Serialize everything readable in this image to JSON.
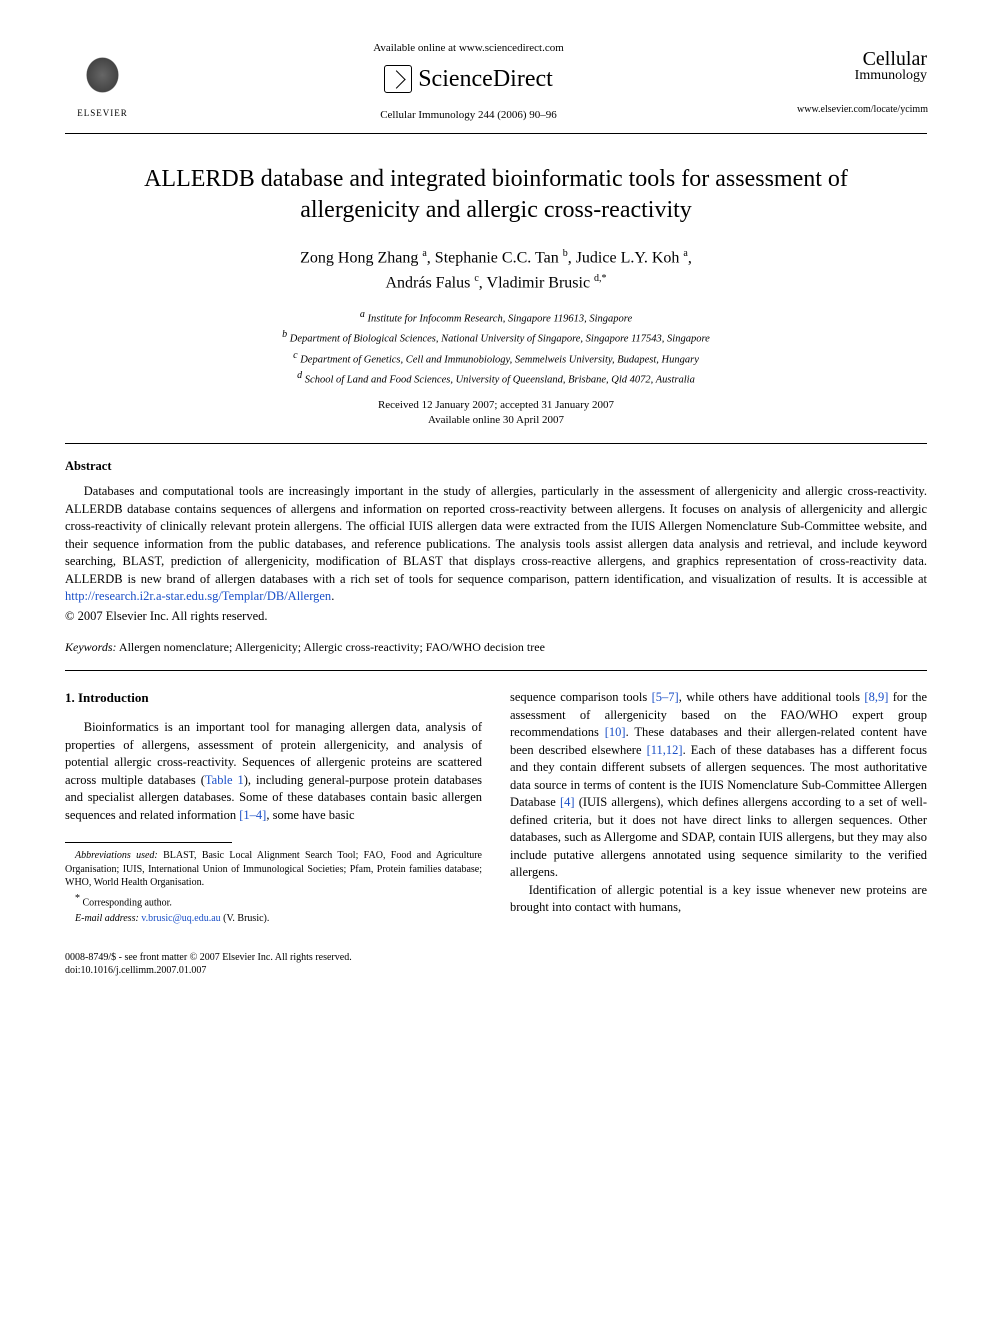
{
  "header": {
    "available_text": "Available online at www.sciencedirect.com",
    "brand": "ScienceDirect",
    "publisher": "ELSEVIER",
    "journal_ref": "Cellular Immunology 244 (2006) 90–96",
    "journal_name_top": "Cellular",
    "journal_name_bottom": "Immunology",
    "journal_url": "www.elsevier.com/locate/ycimm"
  },
  "title": "ALLERDB database and integrated bioinformatic tools for assessment of allergenicity and allergic cross-reactivity",
  "authors_html": "Zong Hong Zhang <span class='sup'>a</span>, Stephanie C.C. Tan <span class='sup'>b</span>, Judice L.Y. Koh <span class='sup'>a</span>,<br>András Falus <span class='sup'>c</span>, Vladimir Brusic <span class='sup'>d,*</span>",
  "affiliations": {
    "a": "Institute for Infocomm Research, Singapore 119613, Singapore",
    "b": "Department of Biological Sciences, National University of Singapore, Singapore 117543, Singapore",
    "c": "Department of Genetics, Cell and Immunobiology, Semmelweis University, Budapest, Hungary",
    "d": "School of Land and Food Sciences, University of Queensland, Brisbane, Qld 4072, Australia"
  },
  "dates": {
    "received": "Received 12 January 2007; accepted 31 January 2007",
    "online": "Available online 30 April 2007"
  },
  "abstract": {
    "heading": "Abstract",
    "body_pre": "Databases and computational tools are increasingly important in the study of allergies, particularly in the assessment of allergenicity and allergic cross-reactivity. ALLERDB database contains sequences of allergens and information on reported cross-reactivity between allergens. It focuses on analysis of allergenicity and allergic cross-reactivity of clinically relevant protein allergens. The official IUIS allergen data were extracted from the IUIS Allergen Nomenclature Sub-Committee website, and their sequence information from the public databases, and reference publications. The analysis tools assist allergen data analysis and retrieval, and include keyword searching, BLAST, prediction of allergenicity, modification of BLAST that displays cross-reactive allergens, and graphics representation of cross-reactivity data. ALLERDB is new brand of allergen databases with a rich set of tools for sequence comparison, pattern identification, and visualization of results. It is accessible at ",
    "url": "http://research.i2r.a-star.edu.sg/Templar/DB/Allergen",
    "body_post": ".",
    "copyright": "© 2007 Elsevier Inc. All rights reserved."
  },
  "keywords": {
    "label": "Keywords:",
    "text": " Allergen nomenclature; Allergenicity; Allergic cross-reactivity; FAO/WHO decision tree"
  },
  "introduction": {
    "heading": "1. Introduction",
    "left_p1_pre": "Bioinformatics is an important tool for managing allergen data, analysis of properties of allergens, assessment of protein allergenicity, and analysis of potential allergic cross-reactivity. Sequences of allergenic proteins are scattered across multiple databases (",
    "left_p1_link1": "Table 1",
    "left_p1_mid": "), including general-purpose protein databases and specialist allergen databases. Some of these databases contain basic allergen sequences and related information ",
    "left_p1_link2": "[1–4]",
    "left_p1_post": ", some have basic",
    "right_p1_pre": "sequence comparison tools ",
    "right_p1_link1": "[5–7]",
    "right_p1_mid1": ", while others have additional tools ",
    "right_p1_link2": "[8,9]",
    "right_p1_mid2": " for the assessment of allergenicity based on the FAO/WHO expert group recommendations ",
    "right_p1_link3": "[10]",
    "right_p1_mid3": ". These databases and their allergen-related content have been described elsewhere ",
    "right_p1_link4": "[11,12]",
    "right_p1_mid4": ". Each of these databases has a different focus and they contain different subsets of allergen sequences. The most authoritative data source in terms of content is the IUIS Nomenclature Sub-Committee Allergen Database ",
    "right_p1_link5": "[4]",
    "right_p1_post": " (IUIS allergens), which defines allergens according to a set of well-defined criteria, but it does not have direct links to allergen sequences. Other databases, such as Allergome and SDAP, contain IUIS allergens, but they may also include putative allergens annotated using sequence similarity to the verified allergens.",
    "right_p2": "Identification of allergic potential is a key issue whenever new proteins are brought into contact with humans,"
  },
  "footnotes": {
    "abbrev_label": "Abbreviations used:",
    "abbrev_text": " BLAST, Basic Local Alignment Search Tool; FAO, Food and Agriculture Organisation; IUIS, International Union of Immunological Societies; Pfam, Protein families database; WHO, World Health Organisation.",
    "corr": "Corresponding author.",
    "email_label": "E-mail address:",
    "email": "v.brusic@uq.edu.au",
    "email_post": " (V. Brusic)."
  },
  "footer": {
    "line1": "0008-8749/$ - see front matter © 2007 Elsevier Inc. All rights reserved.",
    "line2": "doi:10.1016/j.cellimm.2007.01.007"
  }
}
